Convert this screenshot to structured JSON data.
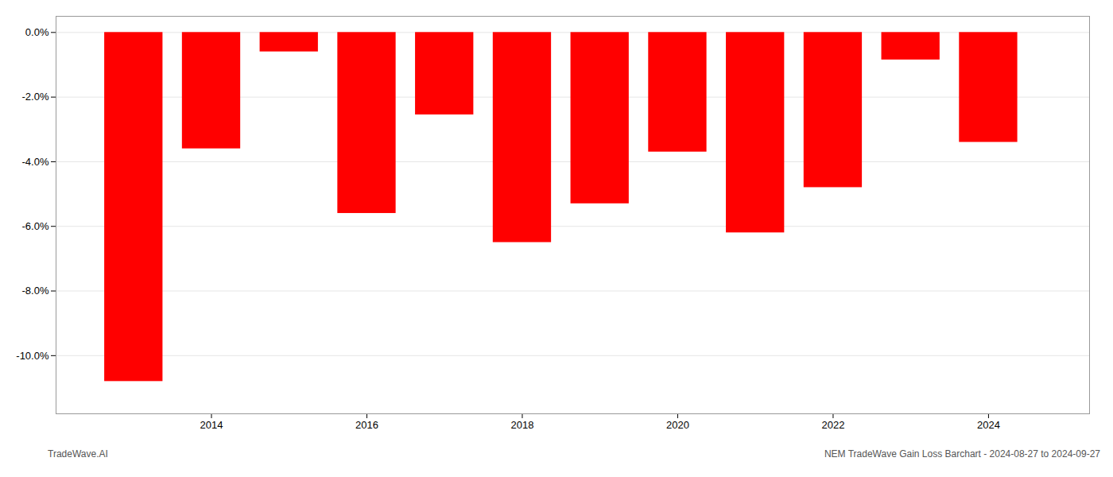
{
  "chart_data": {
    "type": "bar",
    "x": [
      2013,
      2014,
      2015,
      2016,
      2017,
      2018,
      2019,
      2020,
      2021,
      2022,
      2023,
      2024
    ],
    "values": [
      -10.8,
      -3.6,
      -0.6,
      -5.6,
      -2.55,
      -6.5,
      -5.3,
      -3.7,
      -6.2,
      -4.8,
      -0.85,
      -3.4
    ],
    "color": "#ff0000",
    "xlim": [
      2012.0,
      2025.3
    ],
    "ylim": [
      -11.8,
      0.5
    ],
    "xticks": [
      2014,
      2016,
      2018,
      2020,
      2022,
      2024
    ],
    "yticks": [
      {
        "value": 0.0,
        "label": "0.0%"
      },
      {
        "value": -2.0,
        "label": "-2.0%"
      },
      {
        "value": -4.0,
        "label": "-4.0%"
      },
      {
        "value": -6.0,
        "label": "-6.0%"
      },
      {
        "value": -8.0,
        "label": "-8.0%"
      },
      {
        "value": -10.0,
        "label": "-10.0%"
      }
    ],
    "grid": true,
    "annotations": [
      "TradeWave.AI",
      "NEM TradeWave Gain Loss Barchart - 2024-08-27 to 2024-09-27"
    ]
  }
}
